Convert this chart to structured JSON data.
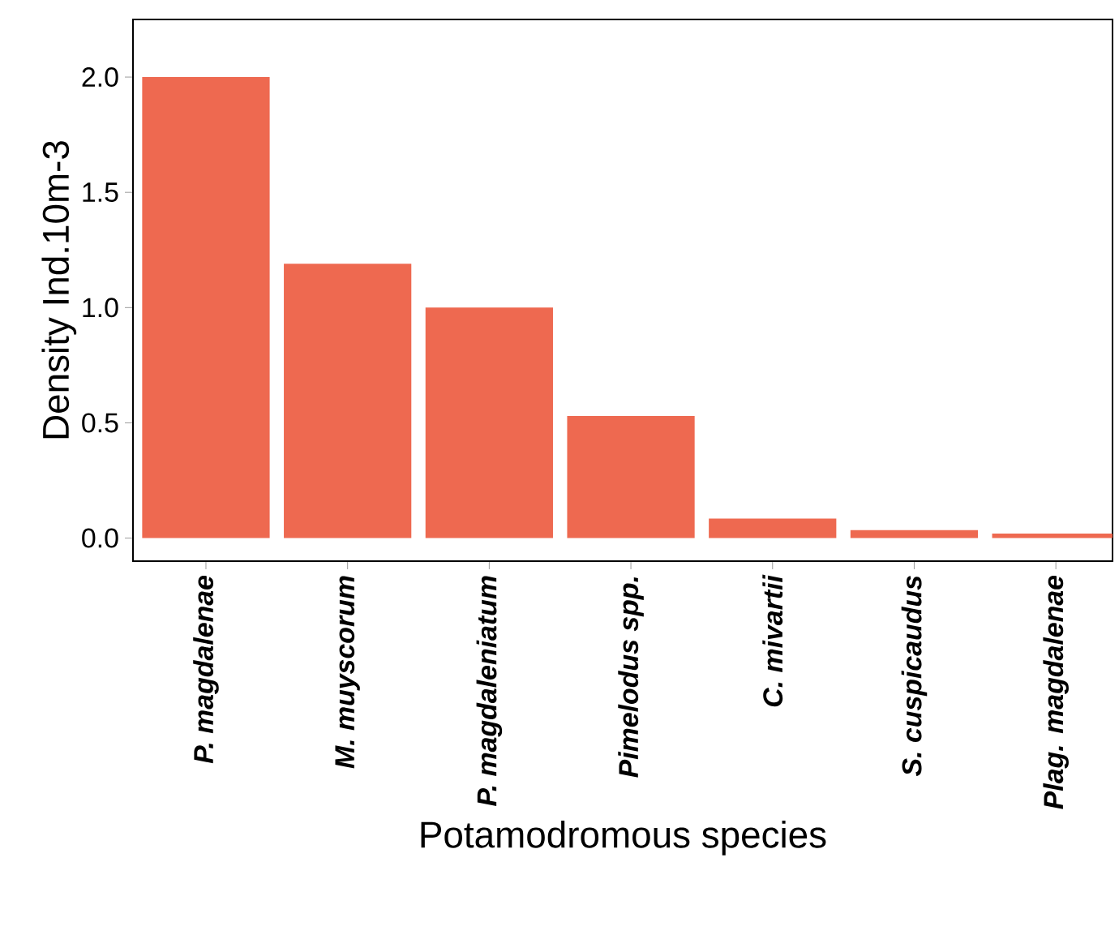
{
  "chart_data": {
    "type": "bar",
    "xlabel": "Potamodromous species",
    "ylabel": "Density Ind.10m-3",
    "categories": [
      "P. magdalenae",
      "M. muyscorum",
      "P. magdaleniatum",
      "Pimelodus spp.",
      "C. mivartii",
      "S. cuspicaudus",
      "Plag. magdalenae"
    ],
    "values": [
      2.0,
      1.19,
      1.0,
      0.53,
      0.085,
      0.035,
      0.02
    ],
    "color": "#ee6950",
    "ylim": [
      -0.1,
      2.25
    ],
    "yticks": [
      {
        "value": 0,
        "label": "0.0"
      },
      {
        "value": 0.5,
        "label": "0.5"
      },
      {
        "value": 1,
        "label": "1.0"
      },
      {
        "value": 1.5,
        "label": "1.5"
      },
      {
        "value": 2,
        "label": "2.0"
      }
    ],
    "grid": false
  }
}
